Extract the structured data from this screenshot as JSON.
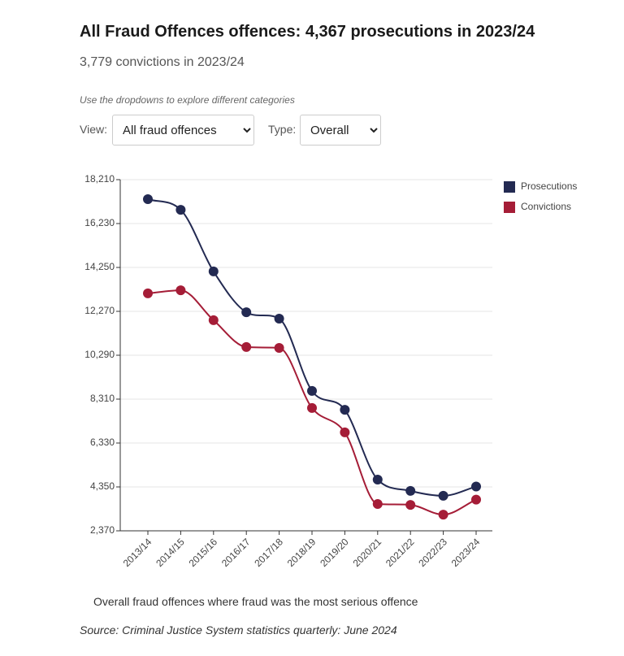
{
  "header": {
    "title": "All Fraud Offences offences: 4,367 prosecutions in 2023/24",
    "subtitle": "3,779 convictions in 2023/24",
    "instruction": "Use the dropdowns to explore different categories"
  },
  "controls": {
    "view_label": "View:",
    "view_value": "All fraud offences",
    "type_label": "Type:",
    "type_value": "Overall"
  },
  "chart_data": {
    "type": "line",
    "categories": [
      "2013/14",
      "2014/15",
      "2015/16",
      "2016/17",
      "2017/18",
      "2018/19",
      "2019/20",
      "2020/21",
      "2021/22",
      "2022/23",
      "2023/24"
    ],
    "series": [
      {
        "name": "Prosecutions",
        "color": "#232a52",
        "values": [
          17330,
          16850,
          14070,
          12230,
          11940,
          8680,
          7830,
          4680,
          4170,
          3950,
          4367
        ]
      },
      {
        "name": "Convictions",
        "color": "#a51d37",
        "values": [
          13080,
          13220,
          11870,
          10660,
          10620,
          7910,
          6810,
          3580,
          3540,
          3100,
          3779
        ]
      }
    ],
    "ylim": [
      2370,
      18210
    ],
    "yticks": [
      {
        "value": 2370,
        "label": "2,370"
      },
      {
        "value": 4350,
        "label": "4,350"
      },
      {
        "value": 6330,
        "label": "6,330"
      },
      {
        "value": 8310,
        "label": "8,310"
      },
      {
        "value": 10290,
        "label": "10,290"
      },
      {
        "value": 12270,
        "label": "12,270"
      },
      {
        "value": 14250,
        "label": "14,250"
      },
      {
        "value": 16230,
        "label": "16,230"
      },
      {
        "value": 18210,
        "label": "18,210"
      }
    ],
    "grid": true,
    "legend": "top-right"
  },
  "footer": {
    "note": "Overall fraud offences where fraud was the most serious offence",
    "source": "Source: Criminal Justice System statistics quarterly: June 2024"
  }
}
